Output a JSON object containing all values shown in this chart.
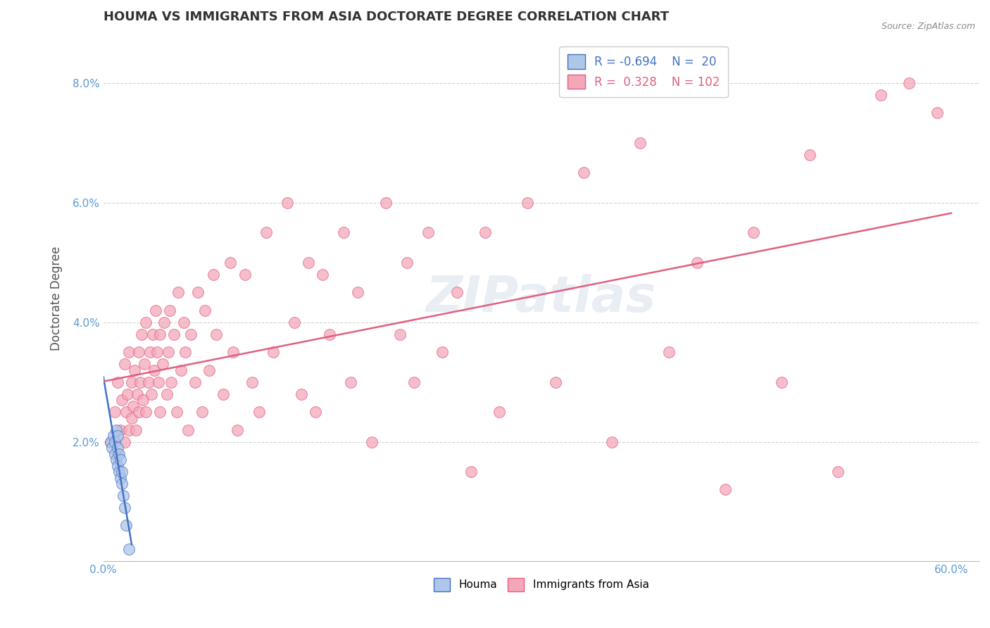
{
  "title": "HOUMA VS IMMIGRANTS FROM ASIA DOCTORATE DEGREE CORRELATION CHART",
  "source": "Source: ZipAtlas.com",
  "ylabel": "Doctorate Degree",
  "xlim": [
    0.0,
    0.62
  ],
  "ylim": [
    0.0,
    0.088
  ],
  "xticks": [
    0.0,
    0.1,
    0.2,
    0.3,
    0.4,
    0.5,
    0.6
  ],
  "yticks": [
    0.0,
    0.02,
    0.04,
    0.06,
    0.08
  ],
  "ytick_labels": [
    "",
    "2.0%",
    "4.0%",
    "6.0%",
    "8.0%"
  ],
  "xtick_labels": [
    "0.0%",
    "",
    "",
    "",
    "",
    "",
    "60.0%"
  ],
  "houma_R": -0.694,
  "houma_N": 20,
  "asia_R": 0.328,
  "asia_N": 102,
  "houma_color": "#aec6e8",
  "houma_line_color": "#4472c4",
  "asia_color": "#f4a7b9",
  "asia_line_color": "#e06080",
  "background_color": "#ffffff",
  "grid_color": "#c8c8c8",
  "houma_scatter_x": [
    0.005,
    0.006,
    0.007,
    0.008,
    0.008,
    0.009,
    0.009,
    0.01,
    0.01,
    0.01,
    0.011,
    0.011,
    0.012,
    0.012,
    0.013,
    0.013,
    0.014,
    0.015,
    0.016,
    0.018
  ],
  "houma_scatter_y": [
    0.02,
    0.019,
    0.021,
    0.018,
    0.02,
    0.017,
    0.022,
    0.016,
    0.019,
    0.021,
    0.015,
    0.018,
    0.014,
    0.017,
    0.013,
    0.015,
    0.011,
    0.009,
    0.006,
    0.002
  ],
  "asia_scatter_x": [
    0.005,
    0.008,
    0.01,
    0.01,
    0.012,
    0.013,
    0.015,
    0.015,
    0.016,
    0.017,
    0.018,
    0.018,
    0.02,
    0.02,
    0.021,
    0.022,
    0.023,
    0.024,
    0.025,
    0.025,
    0.026,
    0.027,
    0.028,
    0.029,
    0.03,
    0.03,
    0.032,
    0.033,
    0.034,
    0.035,
    0.036,
    0.037,
    0.038,
    0.039,
    0.04,
    0.04,
    0.042,
    0.043,
    0.045,
    0.046,
    0.047,
    0.048,
    0.05,
    0.052,
    0.053,
    0.055,
    0.057,
    0.058,
    0.06,
    0.062,
    0.065,
    0.067,
    0.07,
    0.072,
    0.075,
    0.078,
    0.08,
    0.085,
    0.09,
    0.092,
    0.095,
    0.1,
    0.105,
    0.11,
    0.115,
    0.12,
    0.13,
    0.135,
    0.14,
    0.145,
    0.15,
    0.155,
    0.16,
    0.17,
    0.175,
    0.18,
    0.19,
    0.2,
    0.21,
    0.215,
    0.22,
    0.23,
    0.24,
    0.25,
    0.26,
    0.27,
    0.28,
    0.3,
    0.32,
    0.34,
    0.36,
    0.38,
    0.4,
    0.42,
    0.44,
    0.46,
    0.48,
    0.5,
    0.52,
    0.55,
    0.57,
    0.59
  ],
  "asia_scatter_y": [
    0.02,
    0.025,
    0.018,
    0.03,
    0.022,
    0.027,
    0.02,
    0.033,
    0.025,
    0.028,
    0.022,
    0.035,
    0.024,
    0.03,
    0.026,
    0.032,
    0.022,
    0.028,
    0.025,
    0.035,
    0.03,
    0.038,
    0.027,
    0.033,
    0.025,
    0.04,
    0.03,
    0.035,
    0.028,
    0.038,
    0.032,
    0.042,
    0.035,
    0.03,
    0.025,
    0.038,
    0.033,
    0.04,
    0.028,
    0.035,
    0.042,
    0.03,
    0.038,
    0.025,
    0.045,
    0.032,
    0.04,
    0.035,
    0.022,
    0.038,
    0.03,
    0.045,
    0.025,
    0.042,
    0.032,
    0.048,
    0.038,
    0.028,
    0.05,
    0.035,
    0.022,
    0.048,
    0.03,
    0.025,
    0.055,
    0.035,
    0.06,
    0.04,
    0.028,
    0.05,
    0.025,
    0.048,
    0.038,
    0.055,
    0.03,
    0.045,
    0.02,
    0.06,
    0.038,
    0.05,
    0.03,
    0.055,
    0.035,
    0.045,
    0.015,
    0.055,
    0.025,
    0.06,
    0.03,
    0.065,
    0.02,
    0.07,
    0.035,
    0.05,
    0.012,
    0.055,
    0.03,
    0.068,
    0.015,
    0.078,
    0.08,
    0.075
  ]
}
